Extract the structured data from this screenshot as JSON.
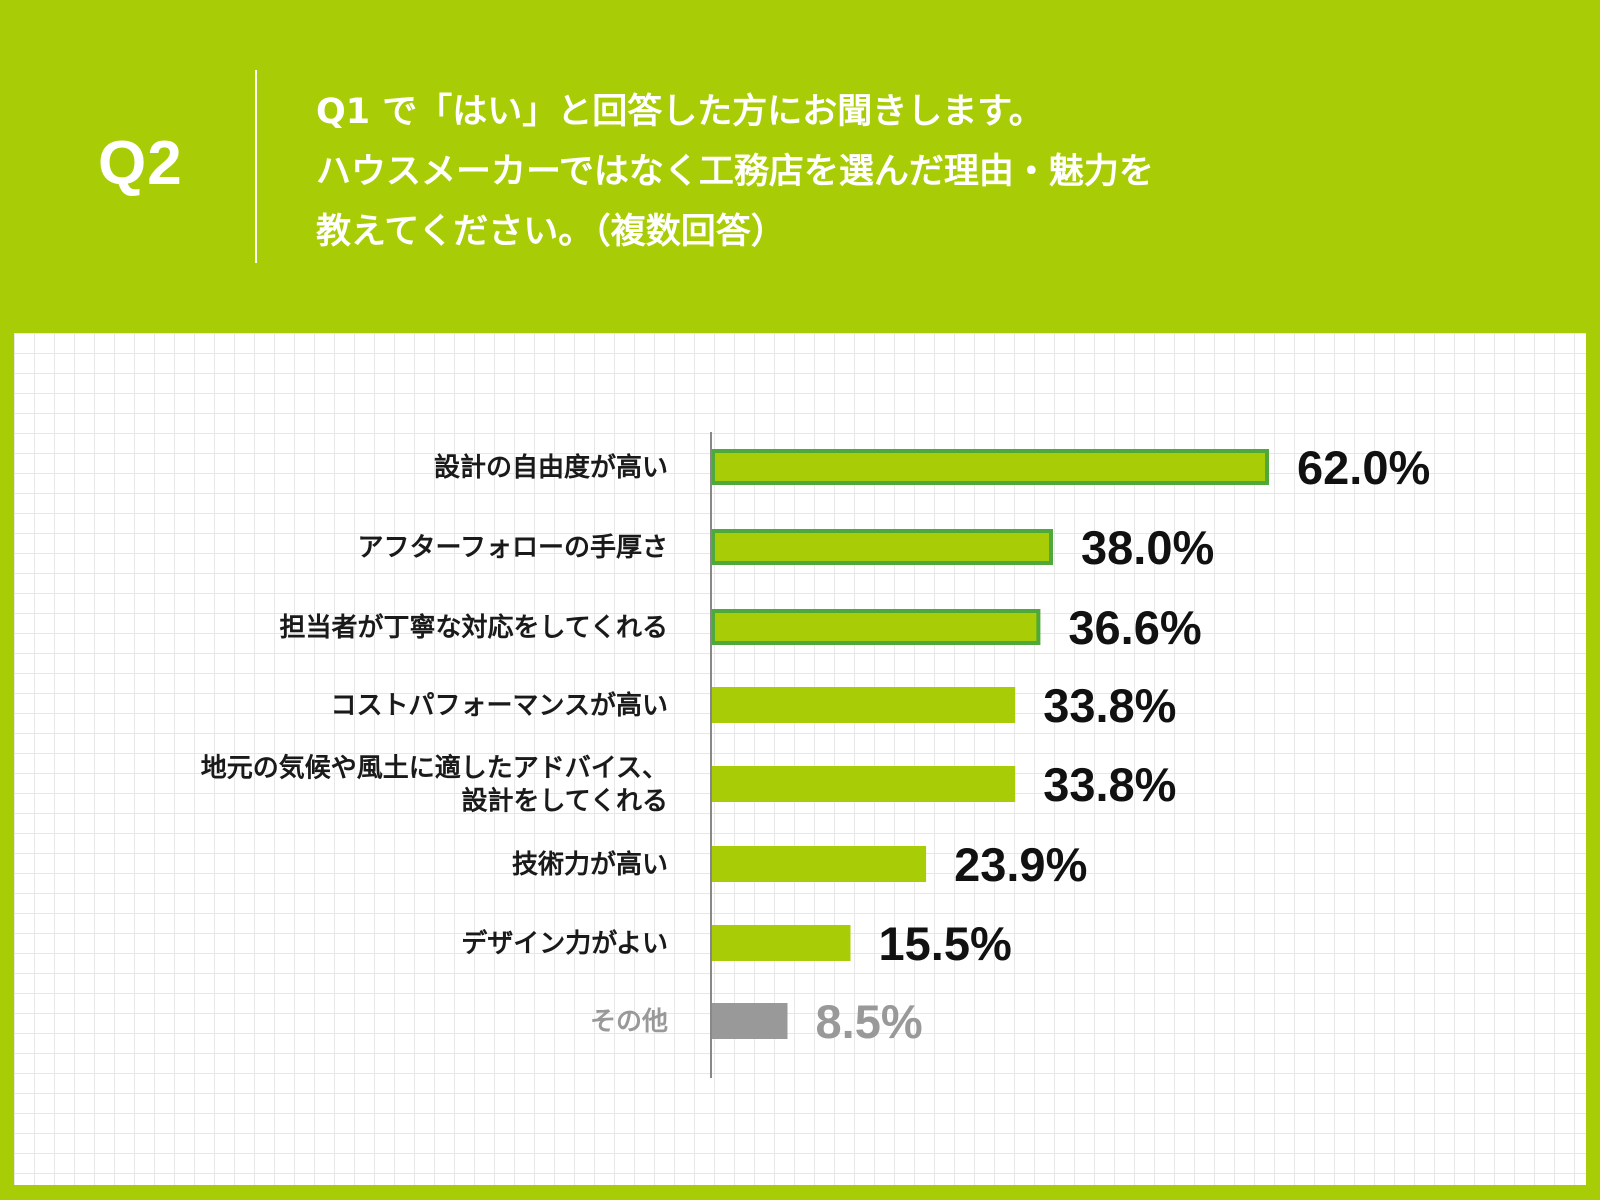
{
  "header": {
    "q_label": "Q2",
    "question_lines": [
      "Q1 で「はい」と回答した方にお聞きします。",
      "ハウスメーカーではなく工務店を選んだ理由・魅力を",
      "教えてください。（複数回答）"
    ]
  },
  "colors": {
    "background": "#a8cc06",
    "bar": "#a8cc06",
    "highlight_outline": "#4ea83a",
    "other_bar": "#999999",
    "axis": "#888888"
  },
  "chart_data": {
    "type": "bar",
    "orientation": "horizontal",
    "categories": [
      [
        "設計の自由度が高い"
      ],
      [
        "アフターフォローの手厚さ"
      ],
      [
        "担当者が丁寧な対応をしてくれる"
      ],
      [
        "コストパフォーマンスが高い"
      ],
      [
        "地元の気候や風土に適したアドバイス、",
        "設計をしてくれる"
      ],
      [
        "技術力が高い"
      ],
      [
        "デザイン力がよい"
      ],
      [
        "その他"
      ]
    ],
    "values": [
      62.0,
      38.0,
      36.6,
      33.8,
      33.8,
      23.9,
      15.5,
      8.5
    ],
    "value_labels": [
      "62.0%",
      "38.0%",
      "36.6%",
      "33.8%",
      "33.8%",
      "23.9%",
      "15.5%",
      "8.5%"
    ],
    "highlighted": [
      true,
      true,
      true,
      false,
      false,
      false,
      false,
      false
    ],
    "other_index": 7,
    "xlim": [
      0,
      62.0
    ],
    "grid": true
  }
}
